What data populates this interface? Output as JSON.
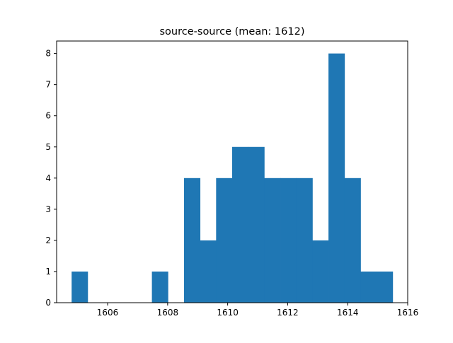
{
  "chart_data": {
    "type": "bar",
    "subtype": "histogram",
    "title": "source-source (mean: 1612)",
    "xlabel": "",
    "ylabel": "",
    "xlim": [
      1604.3,
      1616.0
    ],
    "ylim": [
      0,
      8.4
    ],
    "x_ticks": [
      "1606",
      "1608",
      "1610",
      "1612",
      "1614",
      "1616"
    ],
    "y_ticks": [
      "0",
      "1",
      "2",
      "3",
      "4",
      "5",
      "6",
      "7",
      "8"
    ],
    "bin_range": [
      1604.8,
      1615.5
    ],
    "bin_count": 20,
    "counts": [
      1,
      0,
      0,
      0,
      0,
      1,
      0,
      4,
      2,
      4,
      5,
      5,
      4,
      4,
      4,
      2,
      8,
      4,
      1,
      1
    ],
    "bar_color": "#1f77b4",
    "grid": false,
    "legend": "none"
  }
}
